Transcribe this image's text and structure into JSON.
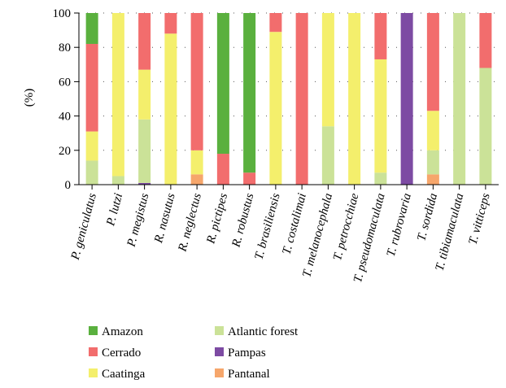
{
  "chart_data": {
    "type": "bar",
    "stacked": true,
    "ylabel": "(%)",
    "ylim": [
      0,
      100
    ],
    "yticks": [
      "0",
      "20",
      "40",
      "60",
      "80",
      "100"
    ],
    "grid": "dotted horizontal",
    "legend_position": "bottom",
    "categories": [
      "P. geniculatus",
      "P. lutzi",
      "P. megistus",
      "R. nasutus",
      "R. neglectus",
      "R. pictipes",
      "R. robustus",
      "T. brasiliensis",
      "T. costalimai",
      "T. melanocephala",
      "T. petrocchiae",
      "T. pseudomaculata",
      "T. rubrovaria",
      "T. sordida",
      "T. tibiamaculata",
      "T. vitticeps"
    ],
    "stack_order": [
      "Pampas",
      "Pantanal",
      "Atlantic forest",
      "Caatinga",
      "Cerrado",
      "Amazon"
    ],
    "series": [
      {
        "name": "Amazon",
        "color": "#5ab03e",
        "values": [
          18,
          0,
          0,
          0,
          0,
          82,
          93,
          0,
          0,
          0,
          0,
          0,
          0,
          0,
          0,
          0
        ]
      },
      {
        "name": "Cerrado",
        "color": "#f26d6d",
        "values": [
          51,
          0,
          33,
          12,
          80,
          18,
          7,
          11,
          100,
          0,
          0,
          27,
          0,
          57,
          0,
          32
        ]
      },
      {
        "name": "Caatinga",
        "color": "#f4ef6c",
        "values": [
          17,
          95,
          29,
          88,
          14,
          0,
          0,
          89,
          0,
          66,
          100,
          66,
          0,
          23,
          0,
          0
        ]
      },
      {
        "name": "Atlantic forest",
        "color": "#cbe298",
        "values": [
          14,
          5,
          37,
          0,
          0,
          0,
          0,
          0,
          0,
          34,
          0,
          7,
          0,
          14,
          100,
          68
        ]
      },
      {
        "name": "Pampas",
        "color": "#7d4ba3",
        "values": [
          0,
          0,
          1,
          0,
          0,
          0,
          0,
          0,
          0,
          0,
          0,
          0,
          100,
          0,
          0,
          0
        ]
      },
      {
        "name": "Pantanal",
        "color": "#f6a66b",
        "values": [
          0,
          0,
          0,
          0,
          6,
          0,
          0,
          0,
          0,
          0,
          0,
          0,
          0,
          6,
          0,
          0
        ]
      }
    ],
    "legend": [
      [
        "Amazon",
        "Atlantic forest"
      ],
      [
        "Cerrado",
        "Pampas"
      ],
      [
        "Caatinga",
        "Pantanal"
      ]
    ]
  }
}
